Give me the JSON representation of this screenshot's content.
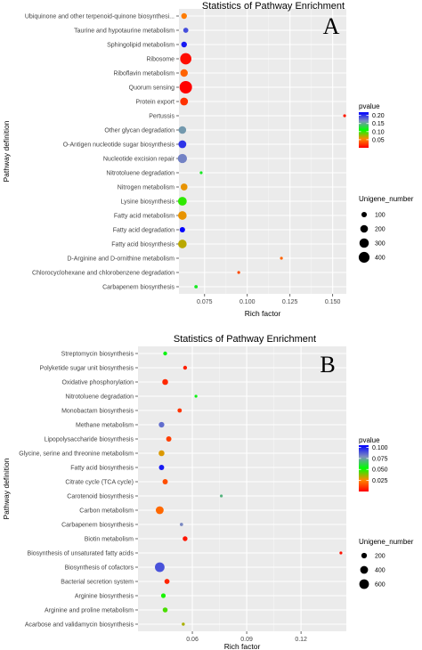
{
  "chart_data": [
    {
      "type": "scatter",
      "panel_label": "A",
      "title": "Statistics of Pathway Enrichment",
      "xlabel": "Rich factor",
      "ylabel": "Pathway definition",
      "xlim": [
        0.06,
        0.158
      ],
      "xticks": [
        0.075,
        0.1,
        0.125,
        0.15
      ],
      "xtick_labels": [
        "0.075",
        "0.100",
        "0.125",
        "0.150"
      ],
      "categories": [
        "Ubiquinone and other terpenoid-quinone biosynthesi...",
        "Taurine and hypotaurine metabolism",
        "Sphingolipid metabolism",
        "Ribosome",
        "Riboflavin metabolism",
        "Quorum sensing",
        "Protein export",
        "Pertussis",
        "Other glycan degradation",
        "O-Antigen nucleotide sugar biosynthesis",
        "Nucleotide excision repair",
        "Nitrotoluene degradation",
        "Nitrogen metabolism",
        "Lysine biosynthesis",
        "Fatty acid metabolism",
        "Fatty acid degradation",
        "Fatty acid biosynthesis",
        "D-Arginine and D-ornithine metabolism",
        "Chlorocyclohexane and chlorobenzene degradation",
        "Carbapenem biosynthesis"
      ],
      "points": [
        {
          "x": 0.063,
          "pvalue": 0.05,
          "unigene": 110
        },
        {
          "x": 0.064,
          "pvalue": 0.19,
          "unigene": 90
        },
        {
          "x": 0.063,
          "pvalue": 0.21,
          "unigene": 110
        },
        {
          "x": 0.064,
          "pvalue": 0.005,
          "unigene": 430
        },
        {
          "x": 0.063,
          "pvalue": 0.04,
          "unigene": 190
        },
        {
          "x": 0.064,
          "pvalue": 0.0005,
          "unigene": 530
        },
        {
          "x": 0.063,
          "pvalue": 0.02,
          "unigene": 210
        },
        {
          "x": 0.157,
          "pvalue": 0.01,
          "unigene": 15
        },
        {
          "x": 0.062,
          "pvalue": 0.16,
          "unigene": 200
        },
        {
          "x": 0.062,
          "pvalue": 0.2,
          "unigene": 210
        },
        {
          "x": 0.062,
          "pvalue": 0.17,
          "unigene": 290
        },
        {
          "x": 0.073,
          "pvalue": 0.12,
          "unigene": 25
        },
        {
          "x": 0.063,
          "pvalue": 0.06,
          "unigene": 160
        },
        {
          "x": 0.062,
          "pvalue": 0.1,
          "unigene": 260
        },
        {
          "x": 0.062,
          "pvalue": 0.06,
          "unigene": 250
        },
        {
          "x": 0.062,
          "pvalue": 0.22,
          "unigene": 100
        },
        {
          "x": 0.062,
          "pvalue": 0.07,
          "unigene": 250
        },
        {
          "x": 0.12,
          "pvalue": 0.04,
          "unigene": 12
        },
        {
          "x": 0.095,
          "pvalue": 0.03,
          "unigene": 20
        },
        {
          "x": 0.07,
          "pvalue": 0.12,
          "unigene": 40
        }
      ],
      "color_legend": {
        "title": "pvalue",
        "range": [
          0.0,
          0.22
        ],
        "ticks": [
          0.05,
          0.1,
          0.15,
          0.2
        ],
        "tick_labels": [
          "0.05",
          "0.10",
          "0.15",
          "0.20"
        ],
        "colors": [
          "#ff0000",
          "#00ff00",
          "#0000ff"
        ]
      },
      "size_legend": {
        "title": "Unigene_number",
        "values": [
          100,
          200,
          300,
          400
        ],
        "labels": [
          "100",
          "200",
          "300",
          "400"
        ]
      },
      "grid": true,
      "legend_position": "right"
    },
    {
      "type": "scatter",
      "panel_label": "B",
      "title": "Statistics of Pathway Enrichment",
      "xlabel": "Rich factor",
      "ylabel": "Pathway definition",
      "xlim": [
        0.03,
        0.145
      ],
      "xticks": [
        0.06,
        0.09,
        0.12
      ],
      "xtick_labels": [
        "0.06",
        "0.09",
        "0.12"
      ],
      "categories": [
        "Streptomycin biosynthesis",
        "Polyketide sugar unit biosynthesis",
        "Oxidative phosphorylation",
        "Nitrotoluene degradation",
        "Monobactam biosynthesis",
        "Methane metabolism",
        "Lipopolysaccharide biosynthesis",
        "Glycine, serine and threonine metabolism",
        "Fatty acid biosynthesis",
        "Citrate cycle (TCA cycle)",
        "Carotenoid biosynthesis",
        "Carbon metabolism",
        "Carbapenem biosynthesis",
        "Biotin metabolism",
        "Biosynthesis of unsaturated fatty acids",
        "Biosynthesis of cofactors",
        "Bacterial secretion system",
        "Arginine biosynthesis",
        "Arginine and proline metabolism",
        "Acarbose and validamycin biosynthesis"
      ],
      "points": [
        {
          "x": 0.045,
          "pvalue": 0.055,
          "unigene": 100
        },
        {
          "x": 0.056,
          "pvalue": 0.006,
          "unigene": 100
        },
        {
          "x": 0.045,
          "pvalue": 0.008,
          "unigene": 220
        },
        {
          "x": 0.062,
          "pvalue": 0.055,
          "unigene": 40
        },
        {
          "x": 0.053,
          "pvalue": 0.01,
          "unigene": 120
        },
        {
          "x": 0.043,
          "pvalue": 0.085,
          "unigene": 200
        },
        {
          "x": 0.047,
          "pvalue": 0.012,
          "unigene": 180
        },
        {
          "x": 0.043,
          "pvalue": 0.03,
          "unigene": 220
        },
        {
          "x": 0.043,
          "pvalue": 0.1,
          "unigene": 180
        },
        {
          "x": 0.045,
          "pvalue": 0.015,
          "unigene": 180
        },
        {
          "x": 0.076,
          "pvalue": 0.07,
          "unigene": 30
        },
        {
          "x": 0.042,
          "pvalue": 0.02,
          "unigene": 400
        },
        {
          "x": 0.054,
          "pvalue": 0.08,
          "unigene": 70
        },
        {
          "x": 0.056,
          "pvalue": 0.004,
          "unigene": 150
        },
        {
          "x": 0.142,
          "pvalue": 0.003,
          "unigene": 50
        },
        {
          "x": 0.042,
          "pvalue": 0.09,
          "unigene": 600
        },
        {
          "x": 0.046,
          "pvalue": 0.007,
          "unigene": 170
        },
        {
          "x": 0.044,
          "pvalue": 0.05,
          "unigene": 140
        },
        {
          "x": 0.045,
          "pvalue": 0.045,
          "unigene": 160
        },
        {
          "x": 0.055,
          "pvalue": 0.035,
          "unigene": 60
        }
      ],
      "color_legend": {
        "title": "pvalue",
        "range": [
          0.0,
          0.105
        ],
        "ticks": [
          0.025,
          0.05,
          0.075,
          0.1
        ],
        "tick_labels": [
          "0.025",
          "0.050",
          "0.075",
          "0.100"
        ],
        "colors": [
          "#ff0000",
          "#00ff00",
          "#0000ff"
        ]
      },
      "size_legend": {
        "title": "Unigene_number",
        "values": [
          200,
          400,
          600
        ],
        "labels": [
          "200",
          "400",
          "600"
        ]
      },
      "grid": true,
      "legend_position": "right"
    }
  ]
}
